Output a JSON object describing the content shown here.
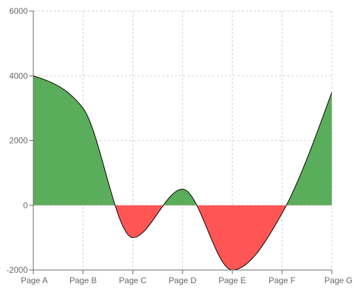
{
  "chart_data": {
    "type": "area",
    "title": "",
    "xlabel": "",
    "ylabel": "",
    "categories": [
      "Page A",
      "Page B",
      "Page C",
      "Page D",
      "Page E",
      "Page F",
      "Page G"
    ],
    "series": [
      {
        "values": [
          4000,
          3000,
          -1000,
          500,
          -2000,
          -250,
          3490
        ]
      }
    ],
    "ylim": [
      -2000,
      6000
    ],
    "yticks": [
      "6000",
      "4000",
      "2000",
      "0",
      "-2000"
    ],
    "ytick_values": [
      6000,
      4000,
      2000,
      0,
      -2000
    ],
    "grid": true,
    "legend": "none",
    "colors": {
      "positive": "#5aad5a",
      "negative": "#ff5555",
      "line": "#000000"
    }
  }
}
